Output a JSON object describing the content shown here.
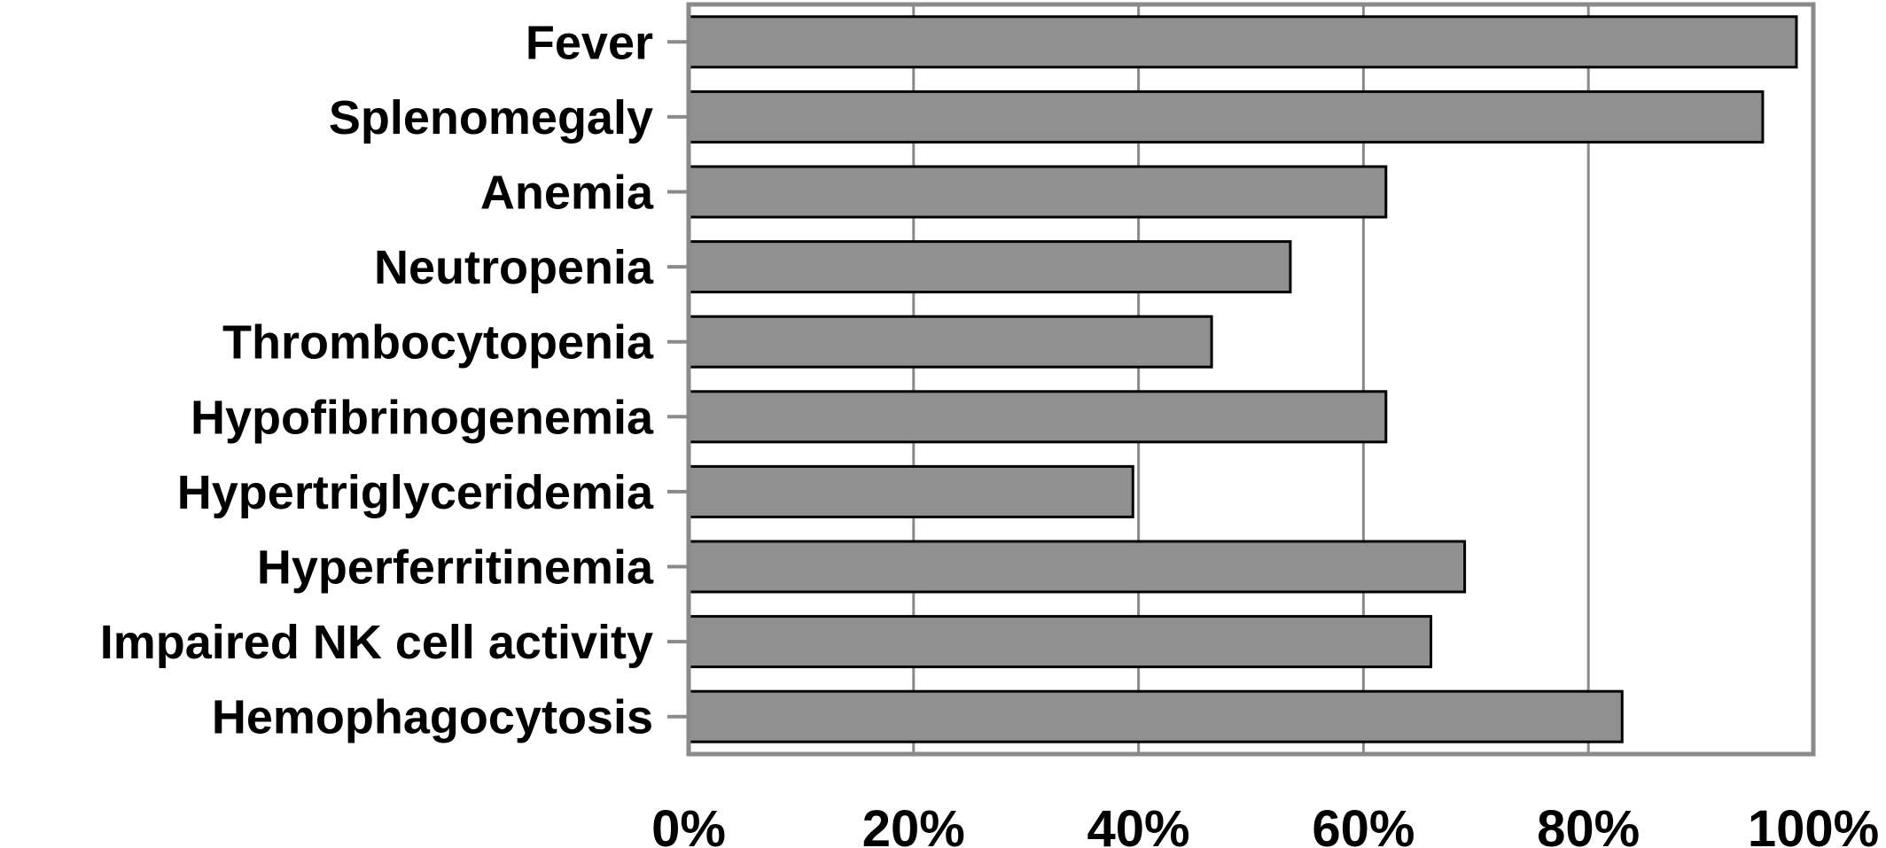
{
  "chart_data": {
    "type": "bar",
    "orientation": "horizontal",
    "title": "",
    "xlabel": "",
    "ylabel": "",
    "categories": [
      "Fever",
      "Splenomegaly",
      "Anemia",
      "Neutropenia",
      "Thrombocytopenia",
      "Hypofibrinogenemia",
      "Hypertriglyceridemia",
      "Hyperferritinemia",
      "Impaired NK cell activity",
      "Hemophagocytosis"
    ],
    "values": [
      98.5,
      95.5,
      62,
      53.5,
      46.5,
      62,
      39.5,
      69,
      66,
      83
    ],
    "xlim": [
      0,
      100
    ],
    "xticks": [
      "0%",
      "20%",
      "40%",
      "60%",
      "80%",
      "100%"
    ],
    "tick_values": [
      0,
      20,
      40,
      60,
      80,
      100
    ],
    "grid": "vertical",
    "legend": "none",
    "colors": {
      "bar": "#909090",
      "bar_edge": "#000000",
      "grid": "#8a8a8a",
      "frame": "#8a8a8a"
    }
  }
}
